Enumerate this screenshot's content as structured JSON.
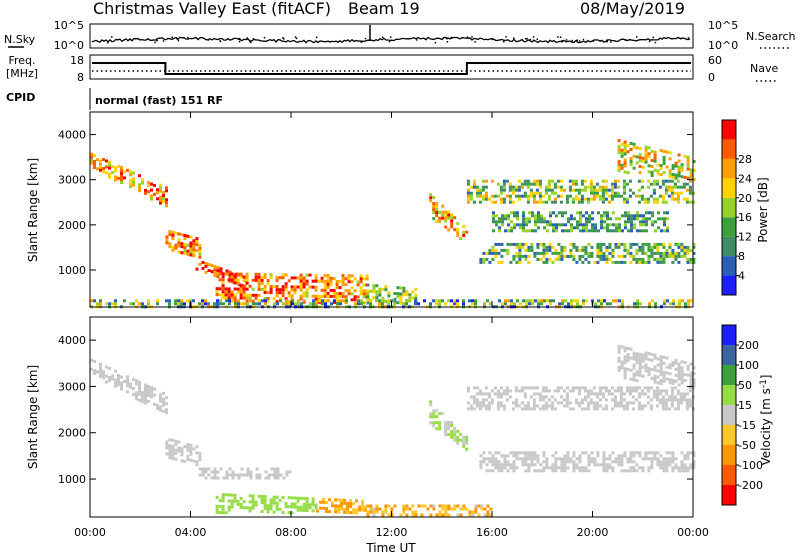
{
  "header": {
    "station": "Christmas Valley East (fitACF)",
    "beam": "Beam 19",
    "date": "08/May/2019"
  },
  "noise_panel": {
    "left_label": "N.Sky",
    "left_ticks": [
      "10^5",
      "10^0"
    ],
    "right_label": "N.Search",
    "right_ticks": [
      "10^5",
      "10^0"
    ]
  },
  "freq_panel": {
    "left_label_1": "Freq.",
    "left_label_2": "[MHz]",
    "left_ticks": [
      "18",
      "8"
    ],
    "right_label": "Nave",
    "right_ticks": [
      "60",
      "0"
    ]
  },
  "cpid": {
    "label": "CPID",
    "value": "normal (fast) 151 RF"
  },
  "x_axis": {
    "title": "Time UT",
    "ticks": [
      "00:00",
      "04:00",
      "08:00",
      "12:00",
      "16:00",
      "20:00",
      "00:00"
    ]
  },
  "colors": {
    "power_scale": [
      "#1e1eff",
      "#2a5fb8",
      "#3c8c64",
      "#3ca03c",
      "#96d228",
      "#ffd200",
      "#ffa000",
      "#ff5a00",
      "#ff0000"
    ],
    "velocity_scale": [
      "#ff0000",
      "#ff5a00",
      "#ff9600",
      "#ffc828",
      "#c8c8c8",
      "#96dc46",
      "#3ca03c",
      "#3c64a0",
      "#1e1eff"
    ],
    "ground_scatter": "#c8c8c8"
  },
  "chart_data": [
    {
      "type": "heatmap",
      "panel": "power",
      "ylabel": "Slant Range [km]",
      "xlabel": "",
      "x_range_hours": [
        0,
        24
      ],
      "ylim": [
        180,
        4500
      ],
      "y_ticks": [
        1000,
        2000,
        3000,
        4000
      ],
      "colorbar_label": "Power [dB]",
      "colorbar_ticks": [
        "4",
        "8",
        "12",
        "16",
        "20",
        "24",
        "28"
      ],
      "colorbar_range": [
        0,
        30
      ],
      "regions": [
        {
          "t": [
            0.0,
            3.0
          ],
          "r0": [
            3300,
            2400
          ],
          "r1": [
            3600,
            2850
          ],
          "v": 22,
          "var": 8
        },
        {
          "t": [
            3.0,
            4.4
          ],
          "r0": [
            1450,
            1250
          ],
          "r1": [
            1900,
            1700
          ],
          "v": 23,
          "var": 7
        },
        {
          "t": [
            4.2,
            6.2
          ],
          "r0": [
            1000,
            600
          ],
          "r1": [
            1250,
            850
          ],
          "v": 26,
          "var": 6
        },
        {
          "t": [
            5.0,
            11.0
          ],
          "r0": [
            300,
            300
          ],
          "r1": [
            950,
            900
          ],
          "v": 24,
          "var": 8
        },
        {
          "t": [
            11.0,
            13.0
          ],
          "r0": [
            300,
            300
          ],
          "r1": [
            700,
            600
          ],
          "v": 14,
          "var": 6
        },
        {
          "t": [
            13.5,
            15.0
          ],
          "r0": [
            2200,
            1600
          ],
          "r1": [
            2700,
            1900
          ],
          "v": 20,
          "var": 8
        },
        {
          "t": [
            15.0,
            24.0
          ],
          "r0": [
            2500,
            2500
          ],
          "r1": [
            3000,
            3000
          ],
          "v": 14,
          "var": 8
        },
        {
          "t": [
            15.5,
            24.0
          ],
          "r0": [
            1200,
            1200
          ],
          "r1": [
            1600,
            1600
          ],
          "v": 12,
          "var": 8
        },
        {
          "t": [
            16.0,
            23.0
          ],
          "r0": [
            1850,
            1850
          ],
          "r1": [
            2300,
            2300
          ],
          "v": 10,
          "var": 6
        },
        {
          "t": [
            21.0,
            24.0
          ],
          "r0": [
            3200,
            3000
          ],
          "r1": [
            3900,
            3500
          ],
          "v": 18,
          "var": 8
        },
        {
          "t": [
            0.0,
            24.0
          ],
          "r0": [
            200,
            200
          ],
          "r1": [
            350,
            350
          ],
          "v": 12,
          "var": 10
        }
      ]
    },
    {
      "type": "heatmap",
      "panel": "velocity",
      "ylabel": "Slant Range [km]",
      "xlabel": "Time UT",
      "x_range_hours": [
        0,
        24
      ],
      "ylim": [
        180,
        4500
      ],
      "y_ticks": [
        1000,
        2000,
        3000,
        4000
      ],
      "colorbar_label": "Velocity [m s^-1]",
      "colorbar_ticks": [
        "200",
        "100",
        "50",
        "15",
        "-15",
        "-50",
        "-100",
        "-200"
      ],
      "colorbar_range": [
        -250,
        250
      ],
      "regions": [
        {
          "t": [
            0.0,
            3.0
          ],
          "r0": [
            3300,
            2400
          ],
          "r1": [
            3600,
            2850
          ],
          "v": 0,
          "var": 10
        },
        {
          "t": [
            3.0,
            4.4
          ],
          "r0": [
            1450,
            1250
          ],
          "r1": [
            1900,
            1700
          ],
          "v": 0,
          "var": 10
        },
        {
          "t": [
            4.2,
            8.0
          ],
          "r0": [
            1000,
            1000
          ],
          "r1": [
            1250,
            1250
          ],
          "v": 0,
          "var": 10
        },
        {
          "t": [
            5.0,
            9.0
          ],
          "r0": [
            300,
            300
          ],
          "r1": [
            700,
            600
          ],
          "v": 55,
          "var": 25
        },
        {
          "t": [
            9.0,
            11.0
          ],
          "r0": [
            300,
            300
          ],
          "r1": [
            600,
            550
          ],
          "v": -80,
          "var": 30
        },
        {
          "t": [
            11.0,
            16.0
          ],
          "r0": [
            200,
            200
          ],
          "r1": [
            450,
            450
          ],
          "v": -70,
          "var": 60
        },
        {
          "t": [
            13.5,
            15.0
          ],
          "r0": [
            2200,
            1600
          ],
          "r1": [
            2700,
            1900
          ],
          "v": 30,
          "var": 25
        },
        {
          "t": [
            15.0,
            24.0
          ],
          "r0": [
            2500,
            2500
          ],
          "r1": [
            3000,
            3000
          ],
          "v": 0,
          "var": 12
        },
        {
          "t": [
            15.5,
            24.0
          ],
          "r0": [
            1200,
            1200
          ],
          "r1": [
            1600,
            1600
          ],
          "v": 0,
          "var": 12
        },
        {
          "t": [
            21.0,
            24.0
          ],
          "r0": [
            3200,
            3000
          ],
          "r1": [
            3900,
            3500
          ],
          "v": 0,
          "var": 12
        }
      ]
    }
  ]
}
